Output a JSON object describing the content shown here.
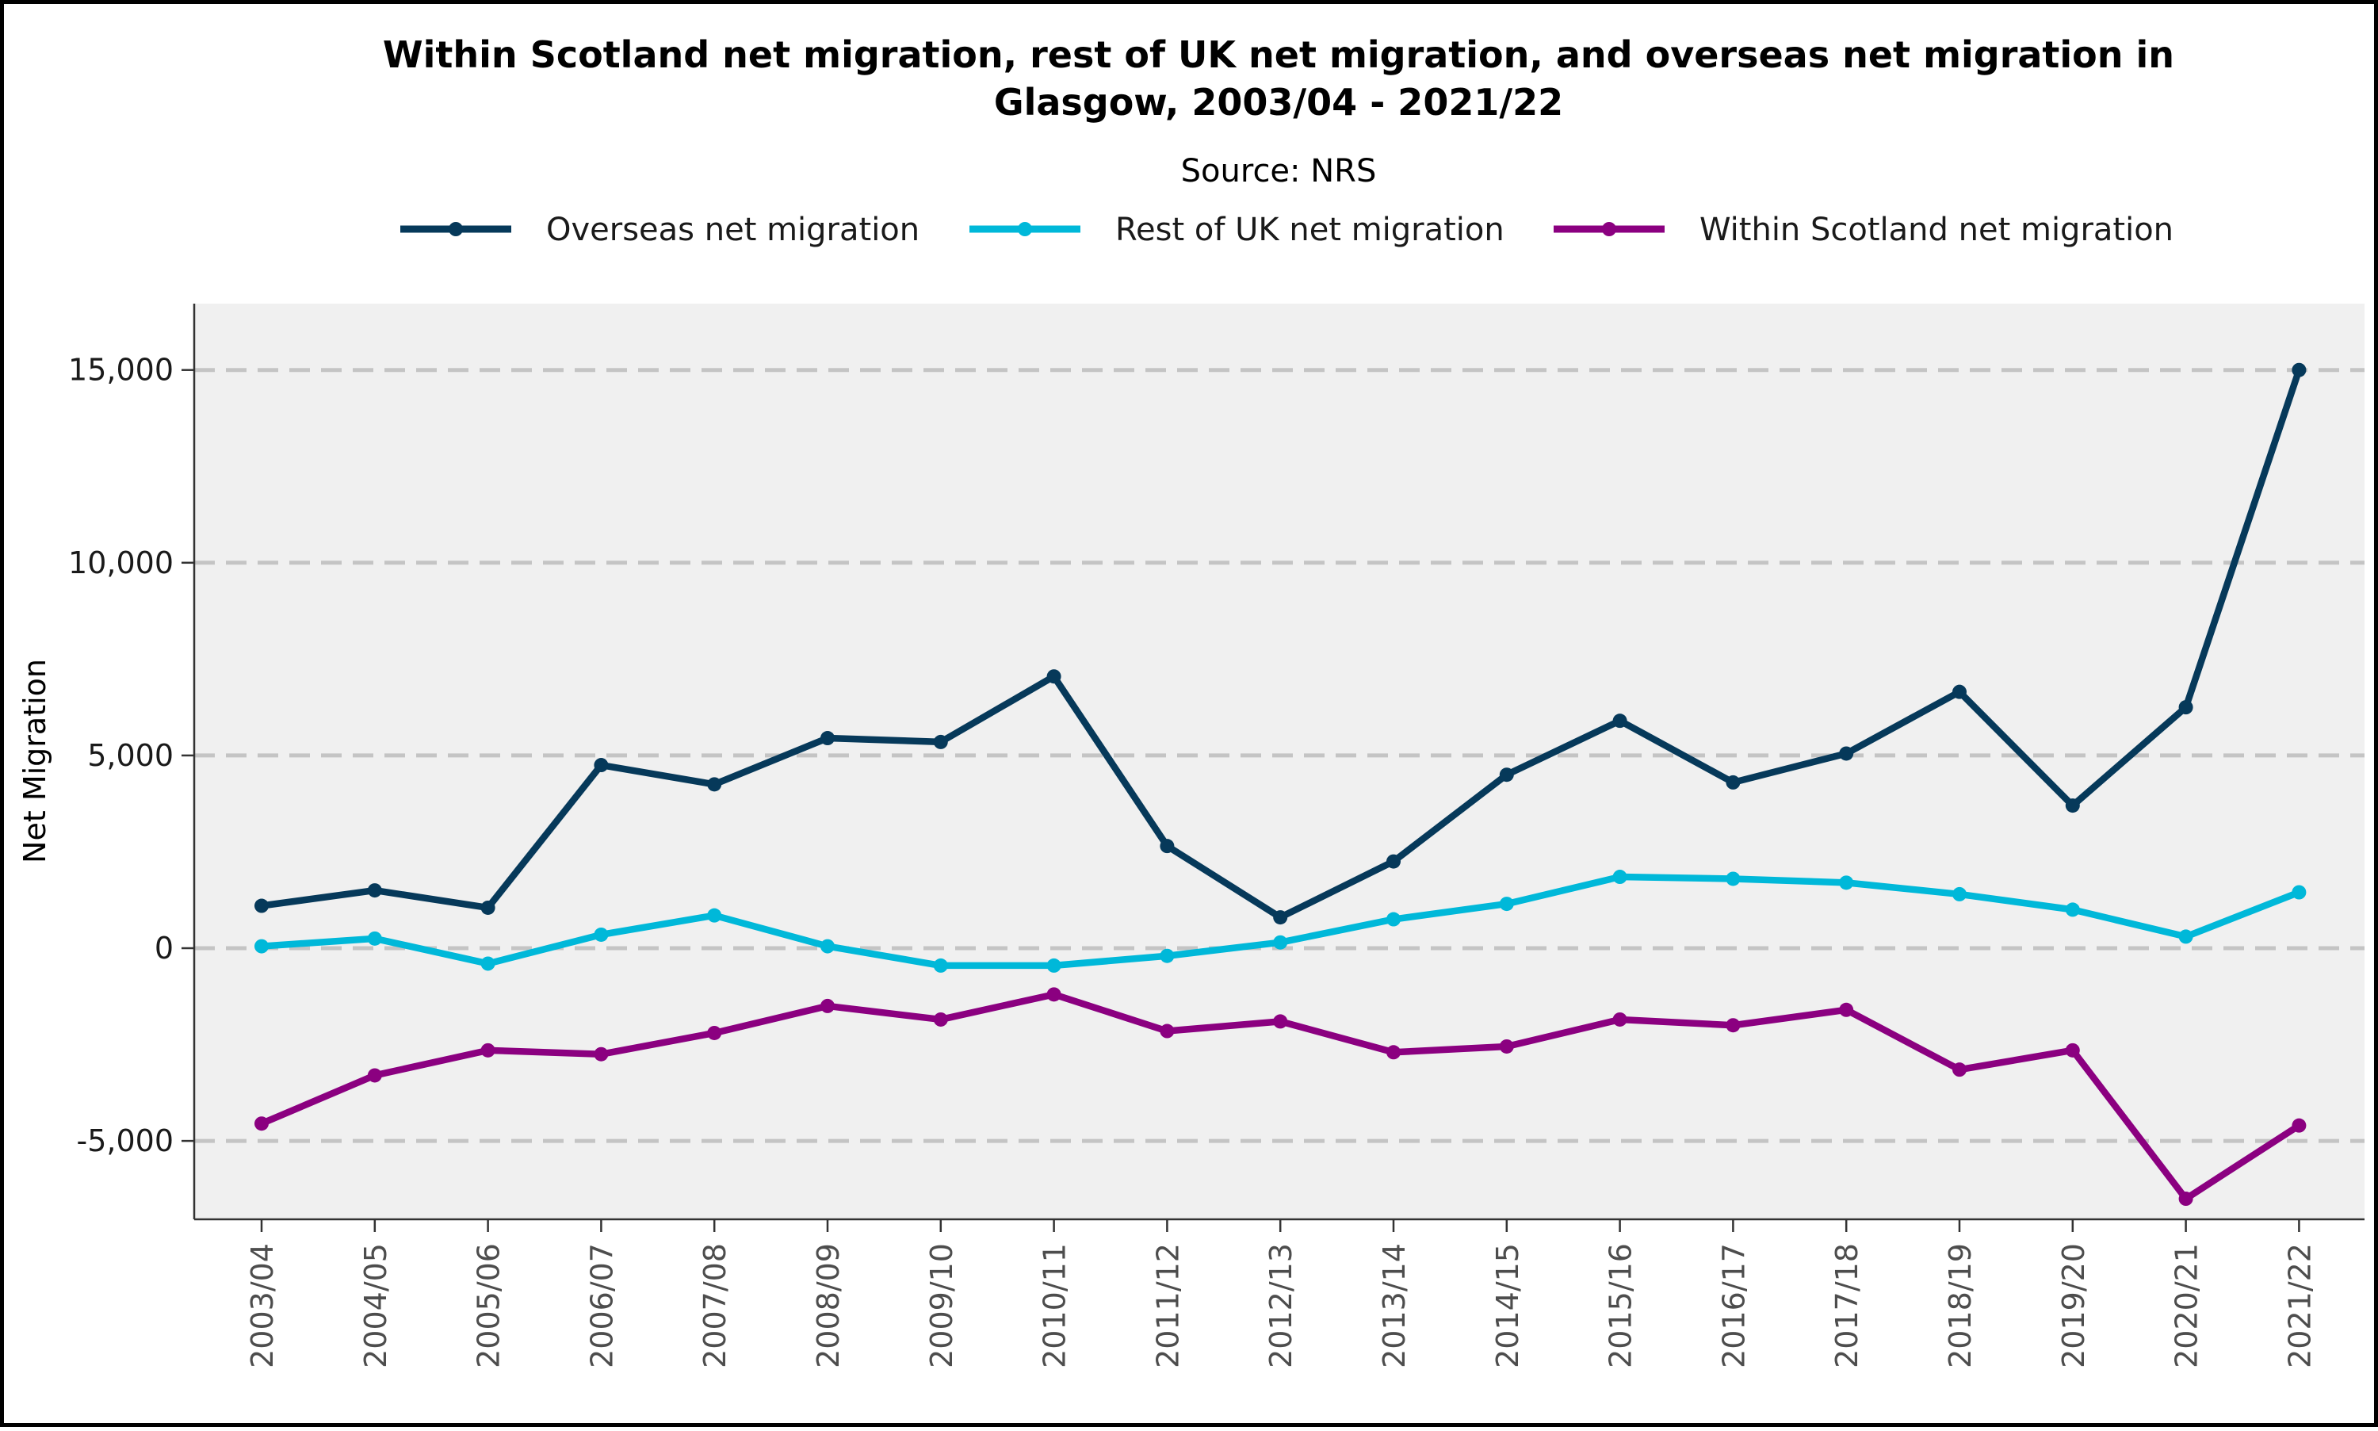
{
  "chart_data": {
    "type": "line",
    "title_line1": "Within Scotland net migration, rest of UK net migration, and overseas net migration in",
    "title_line2": "Glasgow, 2003/04 - 2021/22",
    "subtitle": "Source: NRS",
    "xlabel": "",
    "ylabel": "Net Migration",
    "ylim": [
      -7000,
      16800
    ],
    "yticks": [
      -5000,
      0,
      5000,
      10000,
      15000
    ],
    "ytick_labels": [
      "-5,000",
      "0",
      "5,000",
      "10,000",
      "15,000"
    ],
    "grid": "horizontal dashed",
    "legend_position": "top",
    "categories": [
      "2003/04",
      "2004/05",
      "2005/06",
      "2006/07",
      "2007/08",
      "2008/09",
      "2009/10",
      "2010/11",
      "2011/12",
      "2012/13",
      "2013/14",
      "2014/15",
      "2015/16",
      "2016/17",
      "2017/18",
      "2018/19",
      "2019/20",
      "2020/21",
      "2021/22"
    ],
    "series": [
      {
        "name": "Overseas net migration",
        "color": "#06395a",
        "values": [
          1100,
          1500,
          1050,
          4750,
          4250,
          5450,
          5350,
          7050,
          2650,
          800,
          2250,
          4500,
          5900,
          4300,
          5050,
          6650,
          3700,
          6250,
          15000
        ]
      },
      {
        "name": "Rest of UK net migration",
        "color": "#00b8d9",
        "values": [
          50,
          250,
          -400,
          350,
          850,
          50,
          -450,
          -450,
          -200,
          150,
          750,
          1150,
          1850,
          1800,
          1700,
          1400,
          1000,
          300,
          1450
        ]
      },
      {
        "name": "Within Scotland net migration",
        "color": "#8b0080",
        "values": [
          -4550,
          -3300,
          -2650,
          -2750,
          -2200,
          -1500,
          -1850,
          -1200,
          -2150,
          -1900,
          -2700,
          -2550,
          -1850,
          -2000,
          -1600,
          -3150,
          -2650,
          -6500,
          -4600
        ]
      }
    ]
  }
}
